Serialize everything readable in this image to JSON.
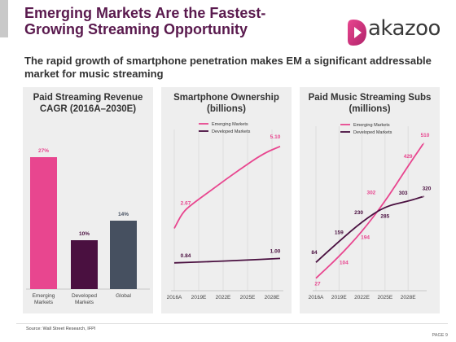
{
  "header": {
    "title_line1": "Emerging Markets Are the Fastest-",
    "title_line2": "Growing Streaming Opportunity",
    "logo_text": "akazoo",
    "subtitle_line1": "The rapid growth of smartphone penetration makes EM a significant addressable",
    "subtitle_line2": "market for music streaming"
  },
  "colors": {
    "emerging": "#e8468f",
    "developed": "#4a1040",
    "global": "#465060",
    "panel_bg": "#eeeeee",
    "title": "#5a1a4e"
  },
  "chart_data": [
    {
      "type": "bar",
      "title_line1": "Paid Streaming Revenue",
      "title_line2": "CAGR (2016A–2030E)",
      "categories": [
        [
          "Emerging",
          "Markets"
        ],
        [
          "Developed",
          "Markets"
        ],
        [
          "Global"
        ]
      ],
      "values": [
        27,
        10,
        14
      ],
      "value_labels": [
        "27%",
        "10%",
        "14%"
      ],
      "ylim": [
        0,
        30
      ]
    },
    {
      "type": "line",
      "title_line1": "Smartphone Ownership",
      "title_line2": "(billions)",
      "x": [
        "2016A",
        "2019E",
        "2022E",
        "2025E",
        "2028E"
      ],
      "xlim": [
        2016,
        2029
      ],
      "ylim": [
        0,
        5.6
      ],
      "series": [
        {
          "name": "Emerging Markets",
          "color": "#e8468f",
          "points": [
            [
              2016,
              2.1
            ],
            [
              2017,
              2.67
            ],
            [
              2018,
              2.95
            ],
            [
              2021,
              3.6
            ],
            [
              2024,
              4.25
            ],
            [
              2027,
              4.85
            ],
            [
              2029,
              5.1
            ]
          ]
        },
        {
          "name": "Developed Markets",
          "color": "#4a1040",
          "points": [
            [
              2016,
              0.84
            ],
            [
              2020,
              0.88
            ],
            [
              2024,
              0.93
            ],
            [
              2029,
              1.0
            ]
          ]
        }
      ],
      "labels": [
        {
          "text": "2.67",
          "x": 2017,
          "y": 2.67,
          "color": "#e8468f"
        },
        {
          "text": "5.10",
          "x": 2029,
          "y": 5.1,
          "color": "#e8468f"
        },
        {
          "text": "0.84",
          "x": 2017,
          "y": 0.84,
          "color": "#4a1040"
        },
        {
          "text": "1.00",
          "x": 2029,
          "y": 1.0,
          "color": "#4a1040"
        }
      ]
    },
    {
      "type": "line",
      "title_line1": "Paid Music Streaming Subs",
      "title_line2": "(millions)",
      "x": [
        "2016A",
        "2019E",
        "2022E",
        "2025E",
        "2028E"
      ],
      "xlim": [
        2016,
        2030
      ],
      "ylim": [
        0,
        560
      ],
      "series": [
        {
          "name": "Emerging Markets",
          "color": "#e8468f",
          "points": [
            [
              2016,
              27
            ],
            [
              2019,
              104
            ],
            [
              2022,
              194
            ],
            [
              2025,
              302
            ],
            [
              2028,
              429
            ],
            [
              2030,
              510
            ]
          ]
        },
        {
          "name": "Developed Markets",
          "color": "#4a1040",
          "points": [
            [
              2016,
              84
            ],
            [
              2019,
              159
            ],
            [
              2022,
              230
            ],
            [
              2025,
              285
            ],
            [
              2028,
              303
            ],
            [
              2030,
              320
            ]
          ]
        }
      ],
      "labels": [
        {
          "text": "27",
          "x": 2016,
          "y": 27,
          "color": "#e8468f"
        },
        {
          "text": "104",
          "x": 2019,
          "y": 104,
          "color": "#e8468f"
        },
        {
          "text": "194",
          "x": 2022,
          "y": 194,
          "color": "#e8468f"
        },
        {
          "text": "302",
          "x": 2023.2,
          "y": 302,
          "color": "#e8468f"
        },
        {
          "text": "429",
          "x": 2028,
          "y": 429,
          "color": "#e8468f"
        },
        {
          "text": "510",
          "x": 2030,
          "y": 510,
          "color": "#e8468f"
        },
        {
          "text": "84",
          "x": 2016,
          "y": 84,
          "color": "#4a1040"
        },
        {
          "text": "159",
          "x": 2019,
          "y": 159,
          "color": "#4a1040"
        },
        {
          "text": "230",
          "x": 2022,
          "y": 230,
          "color": "#4a1040"
        },
        {
          "text": "285",
          "x": 2025,
          "y": 285,
          "color": "#4a1040"
        },
        {
          "text": "303",
          "x": 2028,
          "y": 303,
          "color": "#4a1040"
        },
        {
          "text": "320",
          "x": 2030,
          "y": 320,
          "color": "#4a1040"
        }
      ]
    }
  ],
  "footer": {
    "source": "Source: Wall Street Research, IFPI",
    "page": "PAGE 9"
  }
}
